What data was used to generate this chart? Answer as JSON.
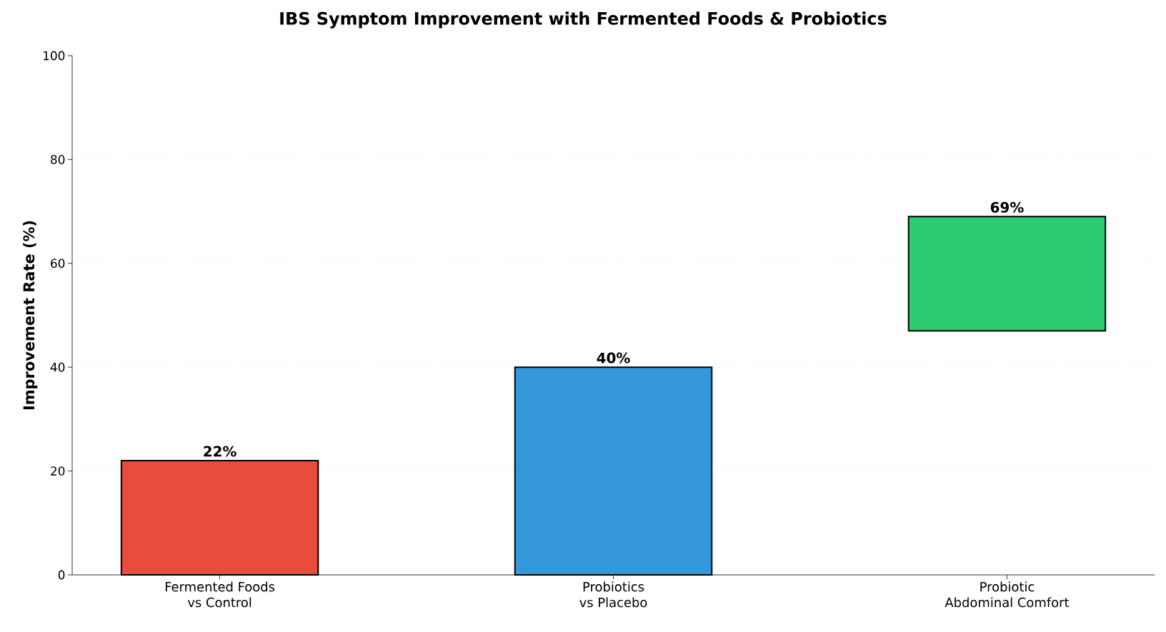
{
  "chart_data": {
    "type": "bar",
    "title": "IBS Symptom Improvement with Fermented Foods & Probiotics",
    "ylabel": "Improvement Rate (%)",
    "categories": [
      "Fermented Foods\nvs Control",
      "Probiotics\nvs Placebo",
      "Probiotic\nAbdominal Comfort"
    ],
    "values": [
      22,
      40,
      22
    ],
    "base": [
      0,
      0,
      47
    ],
    "colors": [
      "#e74c3c",
      "#3498db",
      "#2ecc71"
    ],
    "value_labels": [
      "22%",
      "40%",
      "69%"
    ],
    "ylim": [
      0,
      100
    ],
    "yticks": [
      0,
      20,
      40,
      60,
      80,
      100
    ],
    "grid": "y"
  }
}
